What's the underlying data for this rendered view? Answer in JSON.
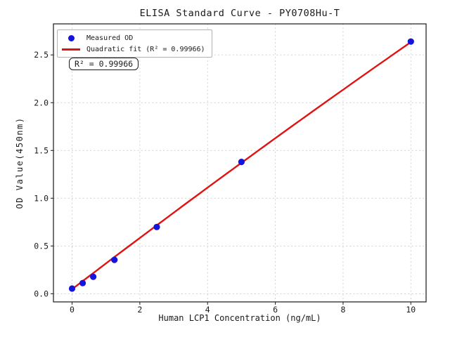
{
  "chart_data": {
    "type": "scatter",
    "title": "ELISA Standard Curve - PY0708Hu-T",
    "xlabel": "Human LCP1 Concentration (ng/mL)",
    "ylabel": "OD Value(450nm)",
    "xlim": [
      -0.55,
      10.45
    ],
    "ylim": [
      -0.085,
      2.825
    ],
    "grid": true,
    "legend_position": "upper-left",
    "annotation": "R² = 0.99966",
    "xticks": {
      "values": [
        0,
        2,
        4,
        6,
        8,
        10
      ],
      "labels": [
        "0",
        "2",
        "4",
        "6",
        "8",
        "10"
      ]
    },
    "yticks": {
      "values": [
        0,
        0.5,
        1.0,
        1.5,
        2.0,
        2.5
      ],
      "labels": [
        "0.0",
        "0.5",
        "1.0",
        "1.5",
        "2.0",
        "2.5"
      ]
    },
    "colors": {
      "points": "#1414dc",
      "line": "#e01212",
      "grid": "#cccccc",
      "frame": "#2a2a2a",
      "text": "#1a1a1a"
    },
    "series": [
      {
        "name": "Measured OD",
        "type": "scatter",
        "x": [
          0,
          0.3125,
          0.625,
          1.25,
          2.5,
          5,
          10
        ],
        "y": [
          0.055,
          0.112,
          0.178,
          0.355,
          0.699,
          1.38,
          2.64
        ]
      },
      {
        "name": "Quadratic fit (R² = 0.99966)",
        "type": "line",
        "fit": "quadratic",
        "coefficients": [
          -0.0012,
          0.2706,
          0.048
        ],
        "x_range": [
          0,
          10
        ],
        "r_squared": 0.99966
      }
    ]
  }
}
